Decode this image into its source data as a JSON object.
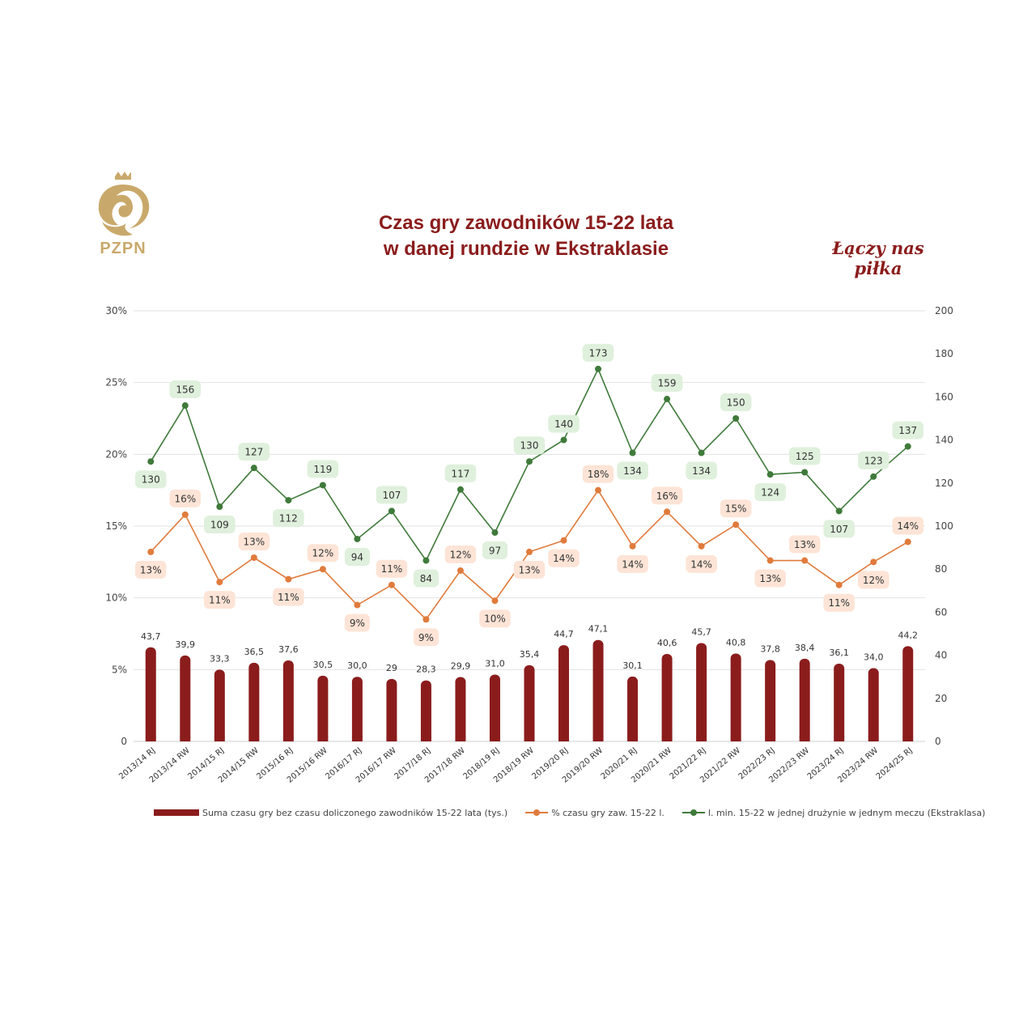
{
  "header": {
    "title_line1": "Czas gry zawodników 15-22 lata",
    "title_line2": "w danej rundzie w Ekstraklasie",
    "slogan": "Łączy nas piłka",
    "logo_text": "PZPN"
  },
  "colors": {
    "bar": "#8b1c1c",
    "pct_line": "#e07b3c",
    "pct_label_bg": "#fde4d6",
    "count_line": "#3f7a3a",
    "count_label_bg": "#dff0dc",
    "brand_gold": "#c9a96b",
    "title": "#8b1c1c"
  },
  "chart_data": {
    "type": "bar",
    "categories": [
      "2013/14 RJ",
      "2013/14 RW",
      "2014/15 RJ",
      "2014/15 RW",
      "2015/16 RJ",
      "2015/16 RW",
      "2016/17 RJ",
      "2016/17 RW",
      "2017/18 RJ",
      "2017/18 RW",
      "2018/19 RJ",
      "2018/19 RW",
      "2019/20 RJ",
      "2019/20 RW",
      "2020/21 RJ",
      "2020/21 RW",
      "2021/22 RJ",
      "2021/22 RW",
      "2022/23 RJ",
      "2022/23 RW",
      "2023/24 RJ",
      "2023/24 RW",
      "2024/25 RJ"
    ],
    "series": [
      {
        "name": "Suma czasu gry bez czasu doliczonego zawodników 15-22 lata (tys.)",
        "type": "bar",
        "axis": "right",
        "values": [
          43.7,
          39.9,
          33.3,
          36.5,
          37.6,
          30.5,
          30.0,
          29,
          28.3,
          29.9,
          31.0,
          35.4,
          44.7,
          47.1,
          30.1,
          40.6,
          45.7,
          40.8,
          37.8,
          38.4,
          36.1,
          34.0,
          44.2
        ],
        "labels": [
          "43,7",
          "39,9",
          "33,3",
          "36,5",
          "37,6",
          "30,5",
          "30,0",
          "29",
          "28,3",
          "29,9",
          "31,0",
          "35,4",
          "44,7",
          "47,1",
          "30,1",
          "40,6",
          "45,7",
          "40,8",
          "37,8",
          "38,4",
          "36,1",
          "34,0",
          "44,2"
        ]
      },
      {
        "name": "% czasu gry zaw. 15-22 l.",
        "type": "line",
        "axis": "left",
        "values": [
          13.2,
          15.8,
          11.1,
          12.8,
          11.3,
          12.0,
          9.5,
          10.9,
          8.5,
          11.9,
          9.8,
          13.2,
          14.0,
          17.5,
          13.6,
          16.0,
          13.6,
          15.1,
          12.6,
          12.6,
          10.9,
          12.5,
          13.9
        ],
        "labels": [
          "13%",
          "16%",
          "11%",
          "13%",
          "11%",
          "12%",
          "9%",
          "11%",
          "9%",
          "12%",
          "10%",
          "13%",
          "14%",
          "18%",
          "14%",
          "16%",
          "14%",
          "15%",
          "13%",
          "13%",
          "11%",
          "12%",
          "14%"
        ]
      },
      {
        "name": "l. min. 15-22 w jednej drużynie w jednym meczu (Ekstraklasa)",
        "type": "line",
        "axis": "right",
        "values": [
          130,
          156,
          109,
          127,
          112,
          119,
          94,
          107,
          84,
          117,
          97,
          130,
          140,
          173,
          134,
          159,
          134,
          150,
          124,
          125,
          107,
          123,
          137
        ]
      }
    ],
    "yleft": {
      "ticks": [
        "0",
        "5%",
        "10%",
        "15%",
        "20%",
        "25%",
        "30%"
      ],
      "lim": [
        0,
        30
      ]
    },
    "yright": {
      "ticks": [
        "0",
        "20",
        "40",
        "60",
        "80",
        "100",
        "120",
        "140",
        "160",
        "180",
        "200"
      ],
      "lim": [
        0,
        200
      ]
    },
    "grid": true,
    "legend": "bottom"
  }
}
